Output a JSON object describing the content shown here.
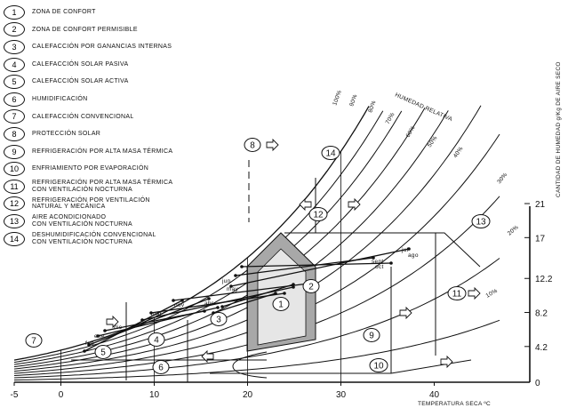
{
  "legend": [
    {
      "num": "1",
      "text": "ZONA DE CONFORT"
    },
    {
      "num": "2",
      "text": "ZONA DE CONFORT PERMISIBLE"
    },
    {
      "num": "3",
      "text": "CALEFACCIÓN POR GANANCIAS INTERNAS"
    },
    {
      "num": "4",
      "text": "CALEFACCIÓN SOLAR PASIVA"
    },
    {
      "num": "5",
      "text": "CALEFACCIÓN SOLAR ACTIVA"
    },
    {
      "num": "6",
      "text": "HUMIDIFICACIÓN"
    },
    {
      "num": "7",
      "text": "CALEFACCIÓN CONVENCIONAL"
    },
    {
      "num": "8",
      "text": "PROTECCIÓN SOLAR"
    },
    {
      "num": "9",
      "text": "REFRIGERACIÓN POR ALTA MASA TÉRMICA"
    },
    {
      "num": "10",
      "text": "ENFRIAMIENTO POR EVAPORACIÓN"
    },
    {
      "num": "11",
      "text": "REFRIGERACIÓN POR ALTA MASA TÉRMICA\nCON VENTILACIÓN NOCTURNA"
    },
    {
      "num": "12",
      "text": "REFRIGERACIÓN POR VENTILACIÓN\nNATURAL Y MECÁNICA"
    },
    {
      "num": "13",
      "text": "AIRE ACONDICIONADO\nCON VENTILACIÓN NOCTURNA"
    },
    {
      "num": "14",
      "text": "DESHUMIDIFICACIÓN CONVENCIONAL\nCON VENTILACIÓN NOCTURNA"
    }
  ],
  "x_axis": {
    "label": "TEMPERATURA SECA  ºC",
    "ticks": [
      "-5",
      "0",
      "10",
      "20",
      "30",
      "40"
    ]
  },
  "y_axis": {
    "label": "CANTIDAD DE HUMEDAD g/Kg DE AIRE SECO",
    "ticks": [
      "0",
      "4.2",
      "8.2",
      "12.2",
      "17",
      "21"
    ]
  },
  "rh_title": "HUMEDAD RELATIVA",
  "rh_labels": [
    "100%",
    "90%",
    "80%",
    "70%",
    "60%",
    "50%",
    "40%",
    "30%",
    "20%",
    "10%"
  ],
  "zone_numbers": [
    "1",
    "2",
    "3",
    "4",
    "5",
    "6",
    "7",
    "8",
    "9",
    "10",
    "11",
    "12",
    "13",
    "14"
  ],
  "month_labels": [
    "jul",
    "ago",
    "sept",
    "jun",
    "oct",
    "may",
    "abr",
    "nov",
    "dic",
    "ene",
    "feb",
    "mar"
  ]
}
